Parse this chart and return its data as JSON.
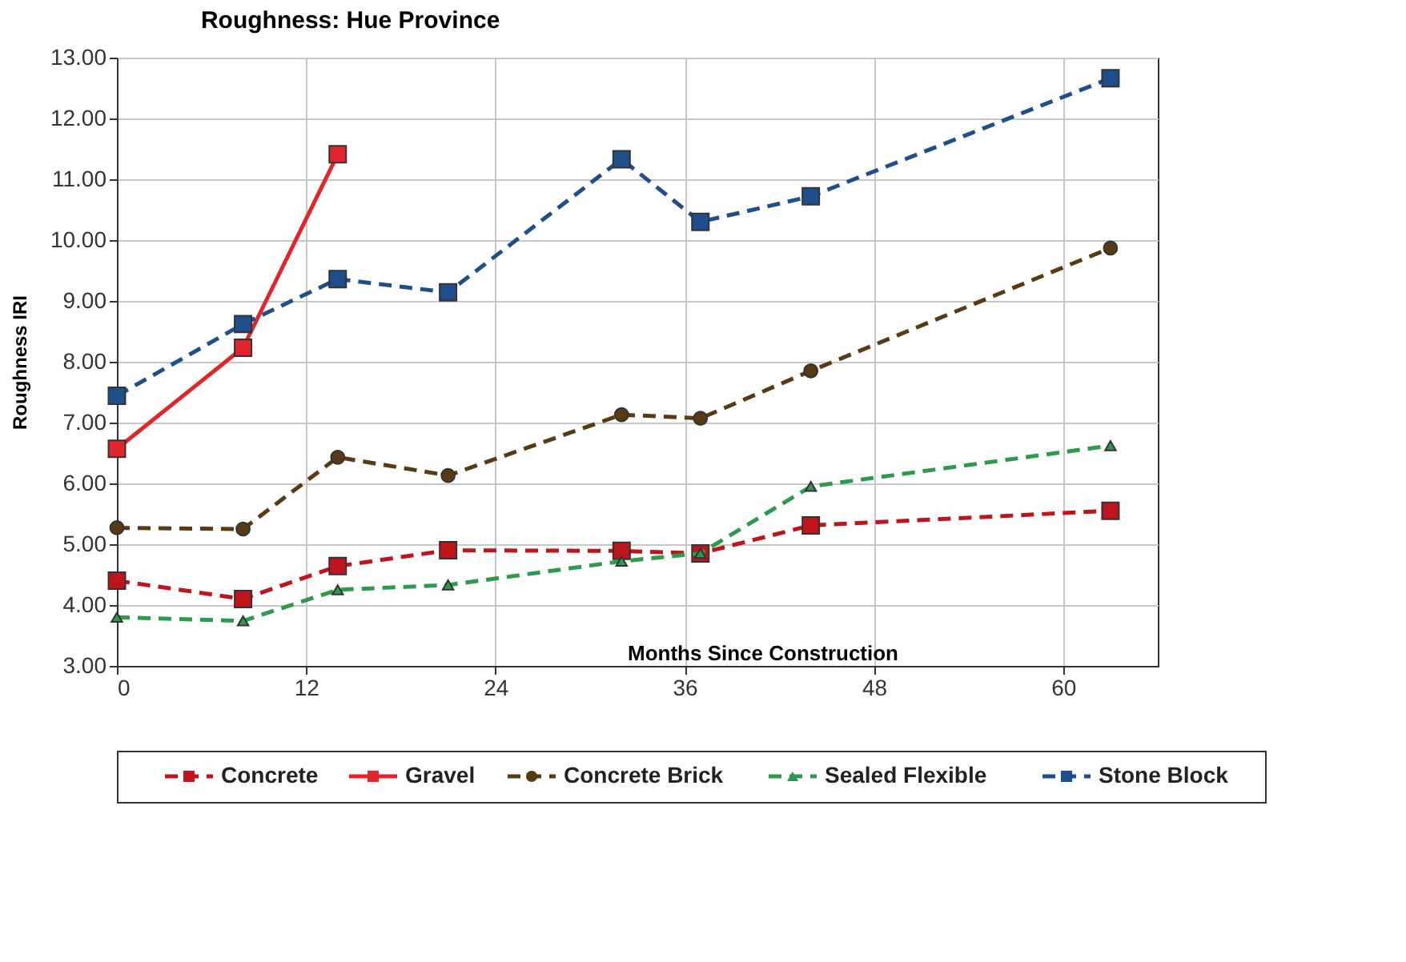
{
  "chart_data": {
    "type": "line",
    "title": "Roughness: Hue Province",
    "xlabel": "Months Since Construction",
    "ylabel": "Roughness IRI",
    "xlim": [
      0,
      66
    ],
    "xticks": [
      0,
      12,
      24,
      36,
      48,
      60
    ],
    "ylim": [
      3,
      13
    ],
    "yticks": [
      {
        "value": 3,
        "label": "3.00"
      },
      {
        "value": 4,
        "label": "4.00"
      },
      {
        "value": 5,
        "label": "5.00"
      },
      {
        "value": 6,
        "label": "6.00"
      },
      {
        "value": 7,
        "label": "7.00"
      },
      {
        "value": 8,
        "label": "8.00"
      },
      {
        "value": 9,
        "label": "9.00"
      },
      {
        "value": 10,
        "label": "10.00"
      },
      {
        "value": 11,
        "label": "11.00"
      },
      {
        "value": 12,
        "label": "12.00"
      },
      {
        "value": 13,
        "label": "13.00"
      }
    ],
    "grid": true,
    "legend": "bottom",
    "series": [
      {
        "name": "Concrete",
        "color": "#c0141c",
        "marker": "square",
        "line_style": "dashed",
        "x": [
          0,
          8,
          14,
          21,
          32,
          37,
          44,
          63
        ],
        "values": [
          4.4,
          4.1,
          4.64,
          4.9,
          4.89,
          4.85,
          5.31,
          5.55
        ]
      },
      {
        "name": "Gravel",
        "color": "#e0262a",
        "marker": "square",
        "line_style": "solid",
        "x": [
          0,
          8,
          14
        ],
        "values": [
          6.57,
          8.23,
          11.41
        ]
      },
      {
        "name": "Concrete Brick",
        "color": "#5a3a12",
        "marker": "circle",
        "line_style": "dashed",
        "x": [
          0,
          8,
          14,
          21,
          32,
          37,
          44,
          63
        ],
        "values": [
          5.27,
          5.25,
          6.43,
          6.13,
          7.13,
          7.07,
          7.85,
          9.87
        ]
      },
      {
        "name": "Sealed Flexible",
        "color": "#2e9a4e",
        "marker": "triangle",
        "line_style": "dashed",
        "x": [
          0,
          8,
          14,
          21,
          32,
          37,
          44,
          63
        ],
        "values": [
          3.8,
          3.74,
          4.25,
          4.33,
          4.72,
          4.85,
          5.95,
          6.62
        ]
      },
      {
        "name": "Stone Block",
        "color": "#1f4e8c",
        "marker": "square",
        "line_style": "dashed",
        "x": [
          0,
          8,
          14,
          21,
          32,
          37,
          44,
          63
        ],
        "values": [
          7.44,
          8.62,
          9.36,
          9.14,
          11.33,
          10.3,
          10.72,
          12.66
        ]
      }
    ]
  }
}
